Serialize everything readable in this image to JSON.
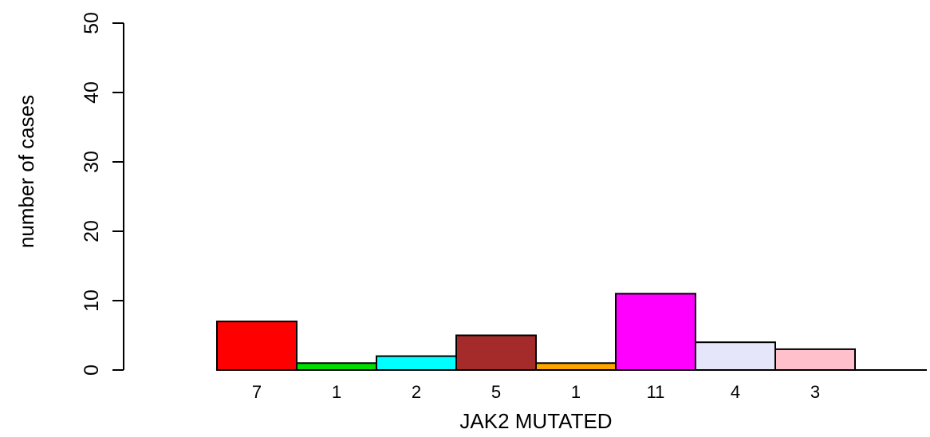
{
  "chart_data": {
    "type": "bar",
    "title": "",
    "xlabel": "JAK2 MUTATED",
    "ylabel": "number of cases",
    "ylim": [
      0,
      50
    ],
    "yticks": [
      0,
      10,
      20,
      30,
      40,
      50
    ],
    "grid": false,
    "legend": "none",
    "categories": [
      "7",
      "1",
      "2",
      "5",
      "1",
      "11",
      "4",
      "3"
    ],
    "values": [
      7,
      1,
      2,
      5,
      1,
      11,
      4,
      3
    ],
    "colors": [
      "#ff0000",
      "#00e000",
      "#00ffff",
      "#a52a2a",
      "#ffa500",
      "#ff00ff",
      "#e6e6fa",
      "#ffc0cb"
    ]
  }
}
